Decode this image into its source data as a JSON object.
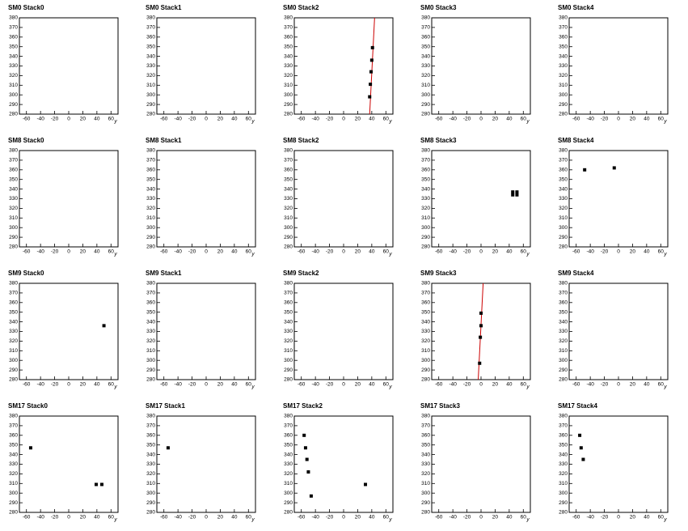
{
  "chart_data": [
    {
      "type": "scatter",
      "title": "SM0 Stack0",
      "x": [],
      "y": [],
      "xlim": [
        -70,
        70
      ],
      "ylim": [
        280,
        380
      ],
      "xticks": [
        -60,
        -40,
        -20,
        0,
        20,
        40,
        60
      ],
      "yticks": [
        280,
        290,
        300,
        310,
        320,
        330,
        340,
        350,
        360,
        370,
        380
      ],
      "xlabel": "y",
      "color": "#000000"
    },
    {
      "type": "scatter",
      "title": "SM0 Stack1",
      "x": [],
      "y": [],
      "xlim": [
        -70,
        70
      ],
      "ylim": [
        280,
        380
      ],
      "xticks": [
        -60,
        -40,
        -20,
        0,
        20,
        40,
        60
      ],
      "yticks": [
        280,
        290,
        300,
        310,
        320,
        330,
        340,
        350,
        360,
        370,
        380
      ],
      "xlabel": "y",
      "color": "#000000"
    },
    {
      "type": "scatter",
      "title": "SM0 Stack2",
      "x": [
        37,
        38,
        39,
        40,
        41
      ],
      "y": [
        298,
        311,
        324,
        336,
        349
      ],
      "xlim": [
        -70,
        70
      ],
      "ylim": [
        280,
        380
      ],
      "xticks": [
        -60,
        -40,
        -20,
        0,
        20,
        40,
        60
      ],
      "yticks": [
        280,
        290,
        300,
        310,
        320,
        330,
        340,
        350,
        360,
        370,
        380
      ],
      "xlabel": "y",
      "color": "#000000",
      "fit": {
        "x": [
          37,
          44
        ],
        "y": [
          280,
          380
        ],
        "color": "#cc0000"
      }
    },
    {
      "type": "scatter",
      "title": "SM0 Stack3",
      "x": [],
      "y": [],
      "xlim": [
        -70,
        70
      ],
      "ylim": [
        280,
        380
      ],
      "xticks": [
        -60,
        -40,
        -20,
        0,
        20,
        40,
        60
      ],
      "yticks": [
        280,
        290,
        300,
        310,
        320,
        330,
        340,
        350,
        360,
        370,
        380
      ],
      "xlabel": "y",
      "color": "#000000"
    },
    {
      "type": "scatter",
      "title": "SM0 Stack4",
      "x": [],
      "y": [],
      "xlim": [
        -70,
        70
      ],
      "ylim": [
        280,
        380
      ],
      "xticks": [
        -60,
        -40,
        -20,
        0,
        20,
        40,
        60
      ],
      "yticks": [
        280,
        290,
        300,
        310,
        320,
        330,
        340,
        350,
        360,
        370,
        380
      ],
      "xlabel": "y",
      "color": "#000000"
    },
    {
      "type": "scatter",
      "title": "SM8 Stack0",
      "x": [],
      "y": [],
      "xlim": [
        -70,
        70
      ],
      "ylim": [
        280,
        380
      ],
      "xticks": [
        -60,
        -40,
        -20,
        0,
        20,
        40,
        60
      ],
      "yticks": [
        280,
        290,
        300,
        310,
        320,
        330,
        340,
        350,
        360,
        370,
        380
      ],
      "xlabel": "y",
      "color": "#000000"
    },
    {
      "type": "scatter",
      "title": "SM8 Stack1",
      "x": [],
      "y": [],
      "xlim": [
        -70,
        70
      ],
      "ylim": [
        280,
        380
      ],
      "xticks": [
        -60,
        -40,
        -20,
        0,
        20,
        40,
        60
      ],
      "yticks": [
        280,
        290,
        300,
        310,
        320,
        330,
        340,
        350,
        360,
        370,
        380
      ],
      "xlabel": "y",
      "color": "#000000"
    },
    {
      "type": "scatter",
      "title": "SM8 Stack2",
      "x": [],
      "y": [],
      "xlim": [
        -70,
        70
      ],
      "ylim": [
        280,
        380
      ],
      "xticks": [
        -60,
        -40,
        -20,
        0,
        20,
        40,
        60
      ],
      "yticks": [
        280,
        290,
        300,
        310,
        320,
        330,
        340,
        350,
        360,
        370,
        380
      ],
      "xlabel": "y",
      "color": "#000000"
    },
    {
      "type": "scatter",
      "title": "SM8 Stack3",
      "x": [
        45,
        51,
        45,
        51
      ],
      "y": [
        337,
        337,
        334,
        334
      ],
      "xlim": [
        -70,
        70
      ],
      "ylim": [
        280,
        380
      ],
      "xticks": [
        -60,
        -40,
        -20,
        0,
        20,
        40,
        60
      ],
      "yticks": [
        280,
        290,
        300,
        310,
        320,
        330,
        340,
        350,
        360,
        370,
        380
      ],
      "xlabel": "y",
      "color": "#000000"
    },
    {
      "type": "scatter",
      "title": "SM8 Stack4",
      "x": [
        -48,
        -6
      ],
      "y": [
        360,
        362
      ],
      "xlim": [
        -70,
        70
      ],
      "ylim": [
        280,
        380
      ],
      "xticks": [
        -60,
        -40,
        -20,
        0,
        20,
        40,
        60
      ],
      "yticks": [
        280,
        290,
        300,
        310,
        320,
        330,
        340,
        350,
        360,
        370,
        380
      ],
      "xlabel": "y",
      "color": "#000000"
    },
    {
      "type": "scatter",
      "title": "SM9 Stack0",
      "x": [
        50
      ],
      "y": [
        336
      ],
      "xlim": [
        -70,
        70
      ],
      "ylim": [
        280,
        380
      ],
      "xticks": [
        -60,
        -40,
        -20,
        0,
        20,
        40,
        60
      ],
      "yticks": [
        280,
        290,
        300,
        310,
        320,
        330,
        340,
        350,
        360,
        370,
        380
      ],
      "xlabel": "y",
      "color": "#000000"
    },
    {
      "type": "scatter",
      "title": "SM9 Stack1",
      "x": [],
      "y": [],
      "xlim": [
        -70,
        70
      ],
      "ylim": [
        280,
        380
      ],
      "xticks": [
        -60,
        -40,
        -20,
        0,
        20,
        40,
        60
      ],
      "yticks": [
        280,
        290,
        300,
        310,
        320,
        330,
        340,
        350,
        360,
        370,
        380
      ],
      "xlabel": "y",
      "color": "#000000"
    },
    {
      "type": "scatter",
      "title": "SM9 Stack2",
      "x": [],
      "y": [],
      "xlim": [
        -70,
        70
      ],
      "ylim": [
        280,
        380
      ],
      "xticks": [
        -60,
        -40,
        -20,
        0,
        20,
        40,
        60
      ],
      "yticks": [
        280,
        290,
        300,
        310,
        320,
        330,
        340,
        350,
        360,
        370,
        380
      ],
      "xlabel": "y",
      "color": "#000000"
    },
    {
      "type": "scatter",
      "title": "SM9 Stack3",
      "x": [
        -2,
        -1,
        0,
        0
      ],
      "y": [
        297,
        324,
        336,
        349
      ],
      "xlim": [
        -70,
        70
      ],
      "ylim": [
        280,
        380
      ],
      "xticks": [
        -60,
        -40,
        -20,
        0,
        20,
        40,
        60
      ],
      "yticks": [
        280,
        290,
        300,
        310,
        320,
        330,
        340,
        350,
        360,
        370,
        380
      ],
      "xlabel": "y",
      "color": "#000000",
      "fit": {
        "x": [
          -4,
          3
        ],
        "y": [
          280,
          380
        ],
        "color": "#cc0000"
      }
    },
    {
      "type": "scatter",
      "title": "SM9 Stack4",
      "x": [],
      "y": [],
      "xlim": [
        -70,
        70
      ],
      "ylim": [
        280,
        380
      ],
      "xticks": [
        -60,
        -40,
        -20,
        0,
        20,
        40,
        60
      ],
      "yticks": [
        280,
        290,
        300,
        310,
        320,
        330,
        340,
        350,
        360,
        370,
        380
      ],
      "xlabel": "y",
      "color": "#000000"
    },
    {
      "type": "scatter",
      "title": "SM17 Stack0",
      "x": [
        -54,
        39,
        47
      ],
      "y": [
        347,
        309,
        309
      ],
      "xlim": [
        -70,
        70
      ],
      "ylim": [
        280,
        380
      ],
      "xticks": [
        -60,
        -40,
        -20,
        0,
        20,
        40,
        60
      ],
      "yticks": [
        280,
        290,
        300,
        310,
        320,
        330,
        340,
        350,
        360,
        370,
        380
      ],
      "xlabel": "y",
      "color": "#000000"
    },
    {
      "type": "scatter",
      "title": "SM17 Stack1",
      "x": [
        -54
      ],
      "y": [
        347
      ],
      "xlim": [
        -70,
        70
      ],
      "ylim": [
        280,
        380
      ],
      "xticks": [
        -60,
        -40,
        -20,
        0,
        20,
        40,
        60
      ],
      "yticks": [
        280,
        290,
        300,
        310,
        320,
        330,
        340,
        350,
        360,
        370,
        380
      ],
      "xlabel": "y",
      "color": "#000000"
    },
    {
      "type": "scatter",
      "title": "SM17 Stack2",
      "x": [
        -56,
        -54,
        -52,
        -50,
        -46,
        31
      ],
      "y": [
        360,
        347,
        335,
        322,
        297,
        309
      ],
      "xlim": [
        -70,
        70
      ],
      "ylim": [
        280,
        380
      ],
      "xticks": [
        -60,
        -40,
        -20,
        0,
        20,
        40,
        60
      ],
      "yticks": [
        280,
        290,
        300,
        310,
        320,
        330,
        340,
        350,
        360,
        370,
        380
      ],
      "xlabel": "y",
      "color": "#000000"
    },
    {
      "type": "scatter",
      "title": "SM17 Stack3",
      "x": [],
      "y": [],
      "xlim": [
        -70,
        70
      ],
      "ylim": [
        280,
        380
      ],
      "xticks": [
        -60,
        -40,
        -20,
        0,
        20,
        40,
        60
      ],
      "yticks": [
        280,
        290,
        300,
        310,
        320,
        330,
        340,
        350,
        360,
        370,
        380
      ],
      "xlabel": "y",
      "color": "#000000"
    },
    {
      "type": "scatter",
      "title": "SM17 Stack4",
      "x": [
        -55,
        -53,
        -50
      ],
      "y": [
        360,
        347,
        335
      ],
      "xlim": [
        -70,
        70
      ],
      "ylim": [
        280,
        380
      ],
      "xticks": [
        -60,
        -40,
        -20,
        0,
        20,
        40,
        60
      ],
      "yticks": [
        280,
        290,
        300,
        310,
        320,
        330,
        340,
        350,
        360,
        370,
        380
      ],
      "xlabel": "y",
      "color": "#000000"
    }
  ]
}
